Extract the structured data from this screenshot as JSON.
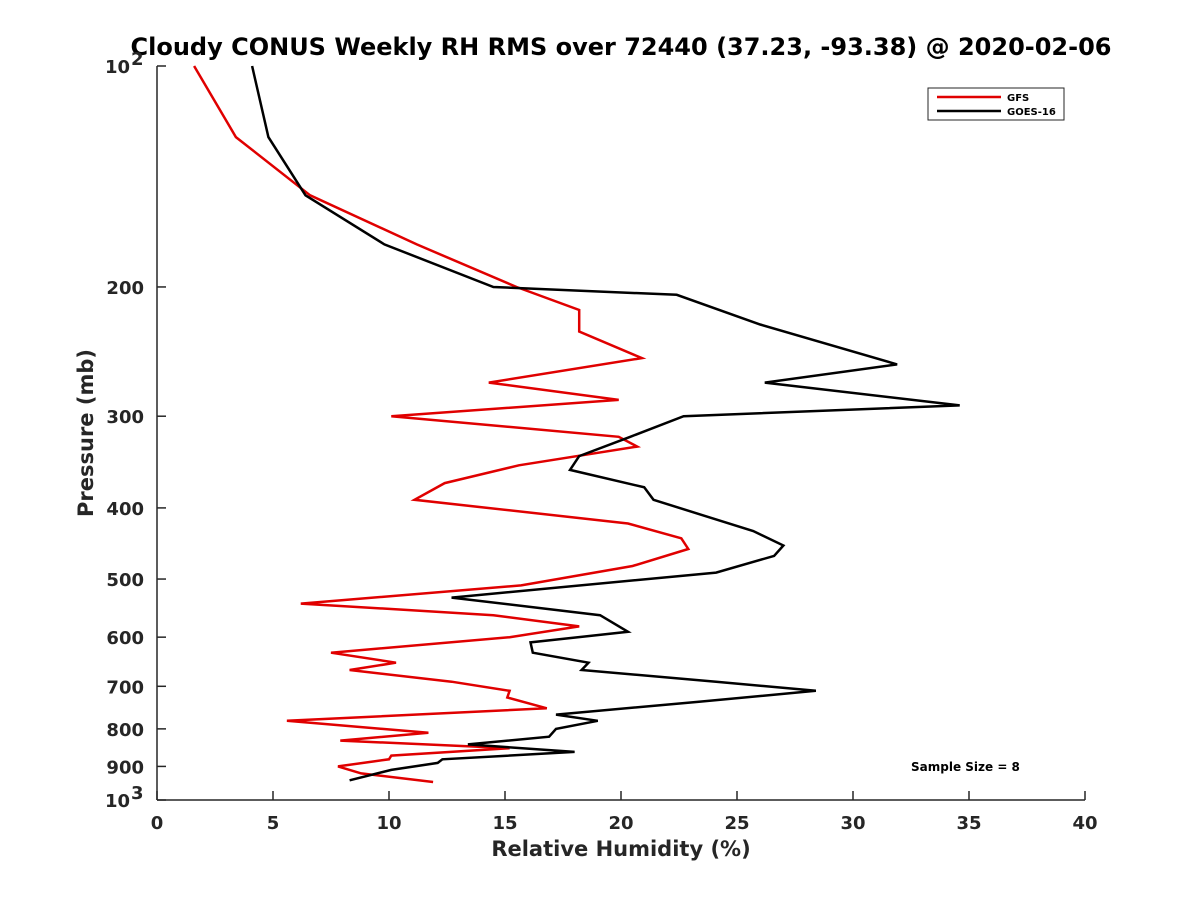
{
  "chart_data": {
    "type": "line",
    "title": "Cloudy CONUS Weekly RH RMS over 72440 (37.23, -93.38) @ 2020-02-06",
    "xlabel": "Relative Humidity (%)",
    "ylabel": "Pressure (mb)",
    "xlim": [
      0,
      40
    ],
    "ylim": [
      100,
      1000
    ],
    "yscale": "log",
    "y_reversed": true,
    "grid": false,
    "legend_position": "top-right",
    "xticks": [
      0,
      5,
      10,
      15,
      20,
      25,
      30,
      35,
      40
    ],
    "yticks": [
      {
        "value": 100,
        "label": "10",
        "sup": "2"
      },
      {
        "value": 200,
        "label": "200"
      },
      {
        "value": 300,
        "label": "300"
      },
      {
        "value": 400,
        "label": "400"
      },
      {
        "value": 500,
        "label": "500"
      },
      {
        "value": 600,
        "label": "600"
      },
      {
        "value": 700,
        "label": "700"
      },
      {
        "value": 800,
        "label": "800"
      },
      {
        "value": 900,
        "label": "900"
      },
      {
        "value": 1000,
        "label": "10",
        "sup": "3"
      }
    ],
    "series": [
      {
        "name": "GFS",
        "color": "#e00000",
        "points": [
          [
            1.6,
            100
          ],
          [
            3.4,
            125
          ],
          [
            6.6,
            150
          ],
          [
            11.2,
            175
          ],
          [
            15.5,
            200
          ],
          [
            18.2,
            215
          ],
          [
            18.2,
            230
          ],
          [
            20.9,
            250
          ],
          [
            14.3,
            270
          ],
          [
            19.9,
            285
          ],
          [
            10.1,
            300
          ],
          [
            19.9,
            320
          ],
          [
            20.7,
            330
          ],
          [
            15.6,
            350
          ],
          [
            12.4,
            370
          ],
          [
            11.1,
            390
          ],
          [
            20.3,
            420
          ],
          [
            22.6,
            440
          ],
          [
            22.9,
            455
          ],
          [
            20.5,
            480
          ],
          [
            15.7,
            510
          ],
          [
            6.2,
            540
          ],
          [
            14.5,
            560
          ],
          [
            18.2,
            580
          ],
          [
            15.2,
            600
          ],
          [
            7.5,
            630
          ],
          [
            10.3,
            650
          ],
          [
            8.3,
            665
          ],
          [
            12.7,
            690
          ],
          [
            15.2,
            710
          ],
          [
            15.1,
            725
          ],
          [
            16.8,
            750
          ],
          [
            5.6,
            780
          ],
          [
            11.7,
            810
          ],
          [
            7.9,
            830
          ],
          [
            15.2,
            850
          ],
          [
            10.1,
            870
          ],
          [
            10.0,
            880
          ],
          [
            7.8,
            900
          ],
          [
            8.8,
            920
          ],
          [
            11.9,
            945
          ]
        ]
      },
      {
        "name": "GOES-16",
        "color": "#000000",
        "points": [
          [
            4.1,
            100
          ],
          [
            4.8,
            125
          ],
          [
            6.4,
            150
          ],
          [
            9.8,
            175
          ],
          [
            14.5,
            200
          ],
          [
            22.4,
            205
          ],
          [
            26.0,
            225
          ],
          [
            31.9,
            255
          ],
          [
            26.2,
            270
          ],
          [
            34.6,
            290
          ],
          [
            22.7,
            300
          ],
          [
            20.4,
            320
          ],
          [
            18.2,
            340
          ],
          [
            17.8,
            355
          ],
          [
            21.0,
            375
          ],
          [
            21.4,
            390
          ],
          [
            23.6,
            410
          ],
          [
            25.7,
            430
          ],
          [
            27.0,
            450
          ],
          [
            26.6,
            465
          ],
          [
            24.1,
            490
          ],
          [
            12.7,
            530
          ],
          [
            19.1,
            560
          ],
          [
            20.3,
            590
          ],
          [
            16.1,
            610
          ],
          [
            16.2,
            630
          ],
          [
            18.6,
            650
          ],
          [
            18.3,
            665
          ],
          [
            24.1,
            690
          ],
          [
            28.4,
            710
          ],
          [
            23.3,
            735
          ],
          [
            17.2,
            765
          ],
          [
            19.0,
            780
          ],
          [
            17.2,
            800
          ],
          [
            16.9,
            820
          ],
          [
            13.4,
            840
          ],
          [
            18.0,
            860
          ],
          [
            12.3,
            880
          ],
          [
            12.1,
            890
          ],
          [
            10.1,
            910
          ],
          [
            8.3,
            940
          ]
        ]
      }
    ],
    "annotation": "Sample Size = 8"
  }
}
